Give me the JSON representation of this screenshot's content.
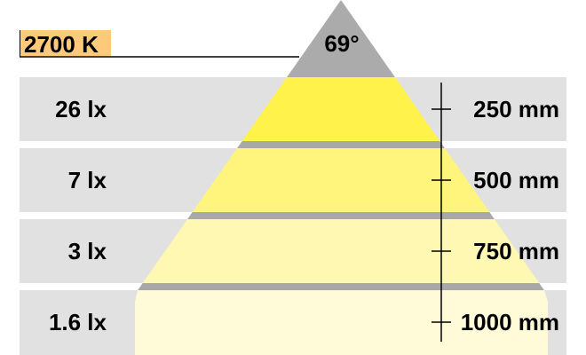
{
  "color_temperature": "2700 K",
  "beam_angle": "69°",
  "rows": [
    {
      "illuminance": "26 lx",
      "distance": "250 mm"
    },
    {
      "illuminance": "7 lx",
      "distance": "500 mm"
    },
    {
      "illuminance": "3 lx",
      "distance": "750 mm"
    },
    {
      "illuminance": "1.6 lx",
      "distance": "1000 mm"
    }
  ],
  "colors": {
    "band_background": "#e1e1e1",
    "apex": "#ababab",
    "separator": "#a8a8a8",
    "label_box": "#fdc97a",
    "band_fills": [
      "#fff24a",
      "#fff57c",
      "#fff8b2",
      "#fffbd9"
    ]
  }
}
